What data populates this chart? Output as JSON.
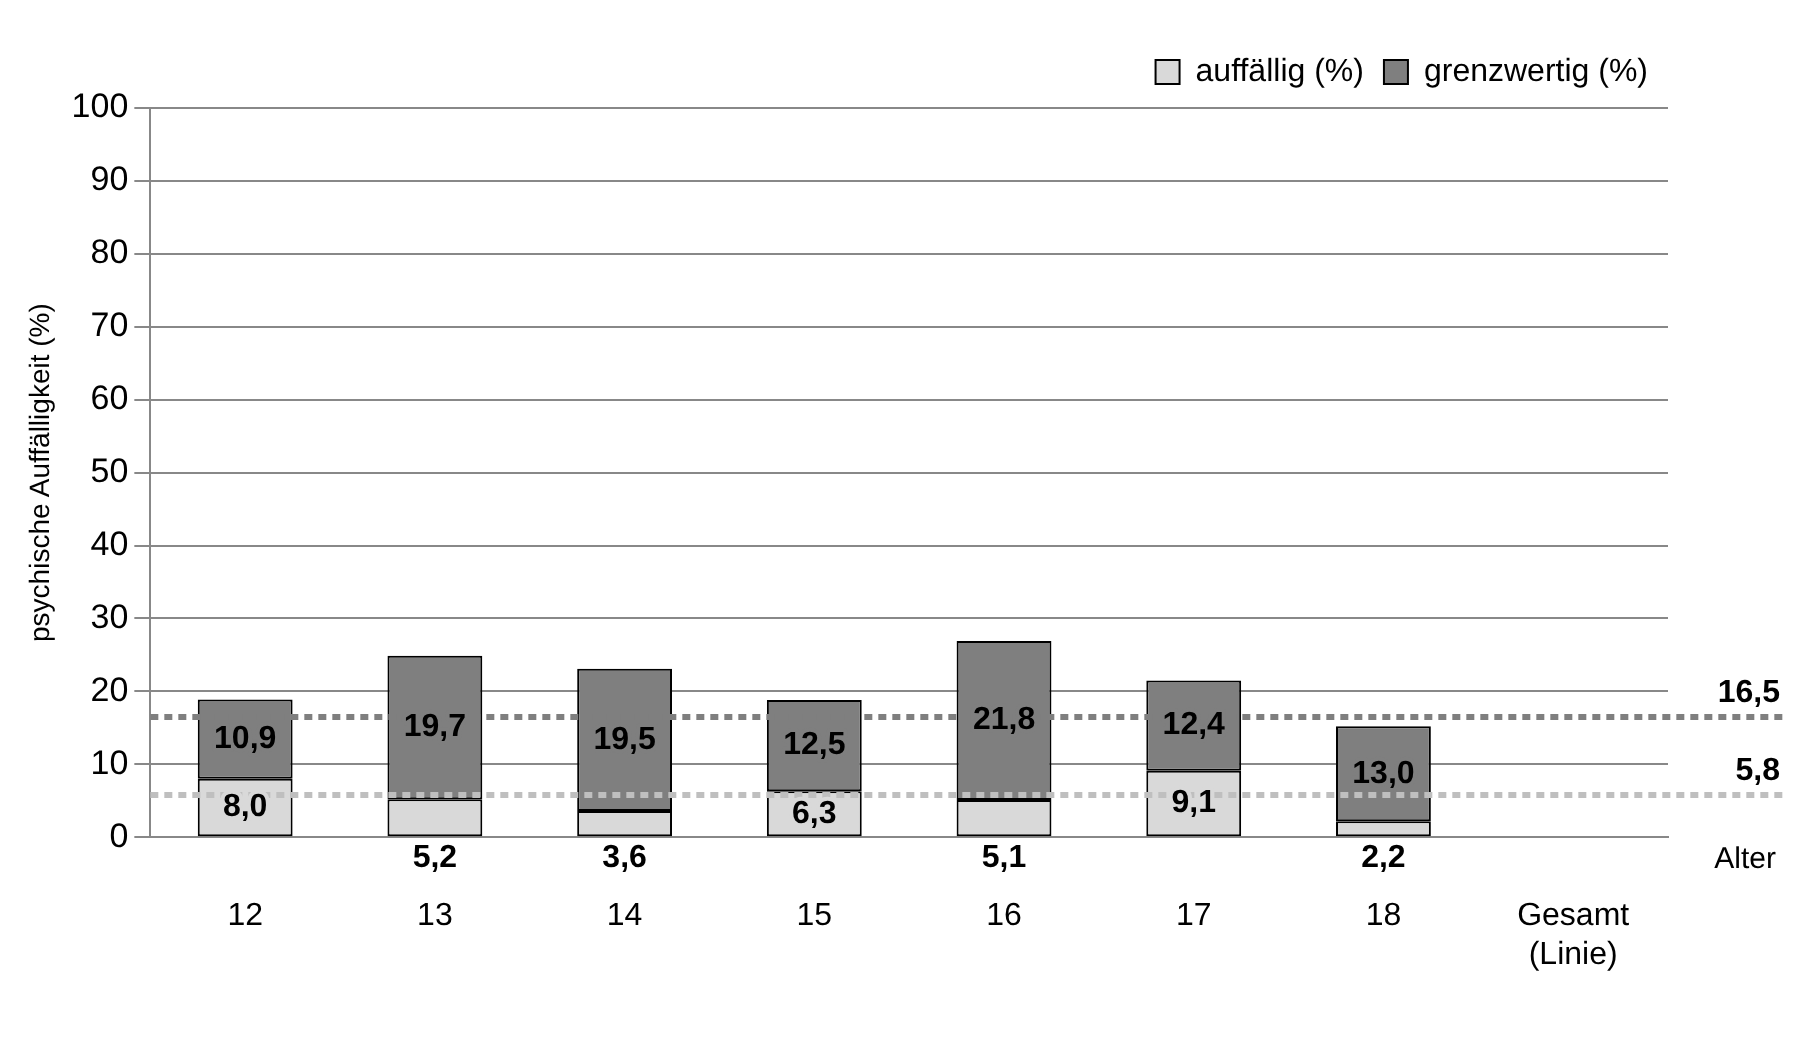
{
  "chart_data": {
    "type": "bar",
    "stacked": true,
    "xlabel": "Alter",
    "ylabel": "psychische Auffälligkeit (%)",
    "categories": [
      "12",
      "13",
      "14",
      "15",
      "16",
      "17",
      "18",
      "Gesamt (Linie)"
    ],
    "series": [
      {
        "name": "auffällig (%)",
        "color": "#d9d9d9",
        "values": [
          8.0,
          5.2,
          3.6,
          6.3,
          5.1,
          9.1,
          2.2,
          null
        ],
        "value_labels": [
          "8,0",
          "5,2",
          "3,6",
          "6,3",
          "5,1",
          "9,1",
          "2,2",
          null
        ]
      },
      {
        "name": "grenzwertig (%)",
        "color": "#7f7f7f",
        "values": [
          10.9,
          19.7,
          19.5,
          12.5,
          21.8,
          12.4,
          13.0,
          null
        ],
        "value_labels": [
          "10,9",
          "19,7",
          "19,5",
          "12,5",
          "21,8",
          "12,4",
          "13,0",
          null
        ]
      }
    ],
    "ylim": [
      0,
      100
    ],
    "yticks": [
      0,
      10,
      20,
      30,
      40,
      50,
      60,
      70,
      80,
      90,
      100
    ],
    "grid": "y",
    "legend": "top right",
    "ref_lines": [
      {
        "axis": "y",
        "value": 16.5,
        "label": "16,5",
        "color": "#7f7f7f",
        "line_style": "dashed"
      },
      {
        "axis": "y",
        "value": 5.8,
        "label": "5,8",
        "color": "#bfbfbf",
        "line_style": "dashed"
      }
    ]
  }
}
